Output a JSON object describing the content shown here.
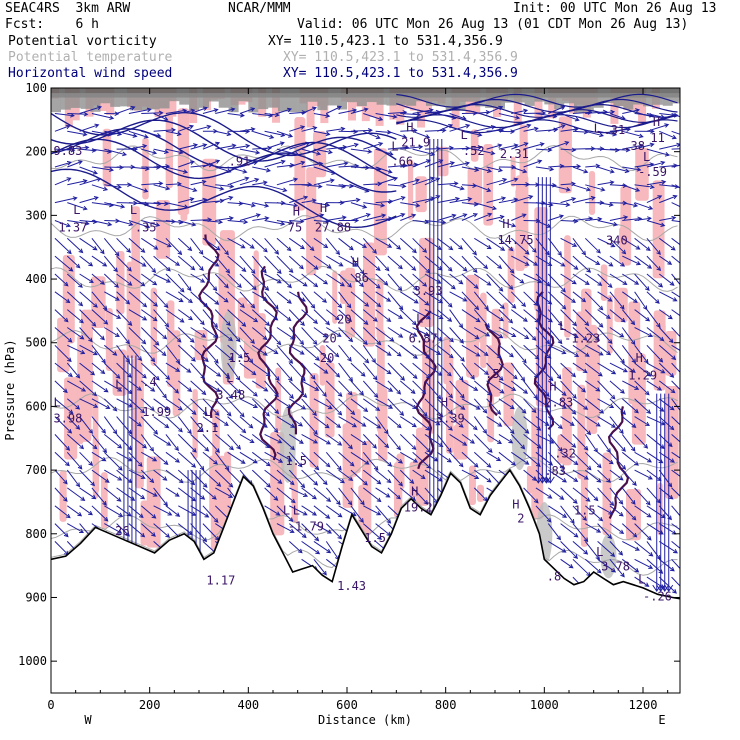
{
  "header": {
    "model": "SEAC4RS  3km ARW",
    "org": "NCAR/MMM",
    "init": "Init: 00 UTC Mon 26 Aug 13",
    "fcst": "Fcst:    6 h",
    "valid": "Valid: 06 UTC Mon 26 Aug 13 (01 CDT Mon 26 Aug 13)",
    "fields": [
      {
        "name": "Potential vorticity",
        "xy": "XY= 110.5,423.1 to 531.4,356.9",
        "color": "#000000"
      },
      {
        "name": "Potential temperature",
        "xy": "XY= 110.5,423.1 to 531.4,356.9",
        "color": "#b0b0b0"
      },
      {
        "name": "Horizontal wind speed",
        "xy": "XY= 110.5,423.1 to 531.4,356.9",
        "color": "#00007a"
      }
    ]
  },
  "chart_data": {
    "type": "cross-section",
    "xlabel": "Distance (km)",
    "ylabel": "Pressure (hPa)",
    "xlim": [
      0,
      1275
    ],
    "ylim": [
      1050,
      100
    ],
    "x_ticks": [
      0,
      200,
      400,
      600,
      800,
      1000,
      1200
    ],
    "y_ticks": [
      100,
      200,
      300,
      400,
      500,
      600,
      700,
      800,
      900,
      1000
    ],
    "x_end_labels": {
      "left": "W",
      "right": "E"
    },
    "terrain": {
      "x_km": [
        0,
        30,
        60,
        90,
        120,
        150,
        180,
        210,
        240,
        270,
        290,
        310,
        330,
        350,
        370,
        390,
        410,
        430,
        450,
        470,
        490,
        510,
        530,
        550,
        570,
        590,
        610,
        630,
        650,
        670,
        690,
        710,
        730,
        750,
        770,
        790,
        810,
        830,
        850,
        870,
        890,
        910,
        930,
        950,
        970,
        990,
        1000,
        1020,
        1040,
        1060,
        1080,
        1100,
        1120,
        1140,
        1160,
        1180,
        1200,
        1230,
        1260,
        1275
      ],
      "p_hpa": [
        840,
        835,
        815,
        790,
        800,
        810,
        820,
        830,
        810,
        800,
        812,
        840,
        830,
        790,
        750,
        710,
        725,
        760,
        800,
        830,
        860,
        855,
        850,
        865,
        875,
        820,
        770,
        795,
        820,
        830,
        800,
        760,
        745,
        760,
        770,
        740,
        705,
        720,
        760,
        770,
        740,
        720,
        700,
        725,
        760,
        800,
        840,
        855,
        870,
        880,
        875,
        860,
        870,
        880,
        875,
        880,
        885,
        895,
        900,
        902
      ]
    },
    "theta_contours_K": [
      300,
      310,
      320,
      330,
      340,
      350,
      360,
      380
    ],
    "labels": [
      {
        "t": "9.83",
        "x": 5,
        "p": 205
      },
      {
        "t": "L",
        "x": 45,
        "p": 298
      },
      {
        "t": "1.37",
        "x": 15,
        "p": 325
      },
      {
        "t": "L",
        "x": 160,
        "p": 298
      },
      {
        "t": ".35",
        "x": 170,
        "p": 325
      },
      {
        "t": ".91",
        "x": 360,
        "p": 222
      },
      {
        "t": "H",
        "x": 490,
        "p": 300
      },
      {
        "t": "75",
        "x": 480,
        "p": 325
      },
      {
        "t": "H",
        "x": 545,
        "p": 295
      },
      {
        "t": "27.88",
        "x": 535,
        "p": 325
      },
      {
        "t": "H",
        "x": 720,
        "p": 168
      },
      {
        "t": "21.9",
        "x": 710,
        "p": 192
      },
      {
        "t": "L",
        "x": 690,
        "p": 198
      },
      {
        "t": ".66",
        "x": 690,
        "p": 222
      },
      {
        "t": "L",
        "x": 830,
        "p": 180
      },
      {
        "t": ".52",
        "x": 835,
        "p": 205
      },
      {
        "t": "2.31",
        "x": 910,
        "p": 210
      },
      {
        "t": "L",
        "x": 1100,
        "p": 170
      },
      {
        "t": ".31",
        "x": 1120,
        "p": 172
      },
      {
        "t": ".38",
        "x": 1160,
        "p": 197
      },
      {
        "t": "H",
        "x": 1220,
        "p": 160
      },
      {
        "t": "11",
        "x": 1215,
        "p": 185
      },
      {
        "t": "L",
        "x": 1200,
        "p": 215
      },
      {
        "t": "-.59",
        "x": 1190,
        "p": 238
      },
      {
        "t": "H",
        "x": 915,
        "p": 320
      },
      {
        "t": "14.75",
        "x": 905,
        "p": 345
      },
      {
        "t": "340",
        "x": 1125,
        "p": 346
      },
      {
        "t": "H",
        "x": 610,
        "p": 380
      },
      {
        "t": "86",
        "x": 615,
        "p": 405
      },
      {
        "t": "3.93",
        "x": 735,
        "p": 425
      },
      {
        "t": "L",
        "x": 740,
        "p": 468
      },
      {
        "t": "6.87",
        "x": 725,
        "p": 500
      },
      {
        "t": "20",
        "x": 580,
        "p": 470
      },
      {
        "t": "20",
        "x": 550,
        "p": 500
      },
      {
        "t": "20",
        "x": 545,
        "p": 530
      },
      {
        "t": "L",
        "x": 1030,
        "p": 480
      },
      {
        "t": "-1.23",
        "x": 1040,
        "p": 500
      },
      {
        "t": "H",
        "x": 1185,
        "p": 530
      },
      {
        "t": "1.29",
        "x": 1170,
        "p": 558
      },
      {
        "t": "1.5",
        "x": 360,
        "p": 530
      },
      {
        "t": "L",
        "x": 355,
        "p": 562
      },
      {
        "t": "3.48",
        "x": 335,
        "p": 588
      },
      {
        "t": ".5",
        "x": 880,
        "p": 555
      },
      {
        "t": "L",
        "x": 130,
        "p": 572
      },
      {
        "t": ".4",
        "x": 185,
        "p": 568
      },
      {
        "t": "L",
        "x": 5,
        "p": 600
      },
      {
        "t": "3.98",
        "x": 5,
        "p": 625
      },
      {
        "t": "1.99",
        "x": 185,
        "p": 615
      },
      {
        "t": "L",
        "x": 310,
        "p": 615
      },
      {
        "t": "2.1",
        "x": 295,
        "p": 640
      },
      {
        "t": "H",
        "x": 790,
        "p": 600
      },
      {
        "t": "3.39",
        "x": 780,
        "p": 625
      },
      {
        "t": "H",
        "x": 1010,
        "p": 575
      },
      {
        "t": "2.83",
        "x": 1000,
        "p": 600
      },
      {
        "t": "1.5",
        "x": 475,
        "p": 692
      },
      {
        "t": ".32",
        "x": 1020,
        "p": 680
      },
      {
        "t": ".83",
        "x": 1000,
        "p": 708
      },
      {
        "t": "H",
        "x": 730,
        "p": 740
      },
      {
        "t": "19.2",
        "x": 715,
        "p": 765
      },
      {
        "t": "H",
        "x": 935,
        "p": 760
      },
      {
        "t": "2",
        "x": 945,
        "p": 782
      },
      {
        "t": "1.5",
        "x": 1060,
        "p": 770
      },
      {
        "t": "L",
        "x": 470,
        "p": 770
      },
      {
        "t": "L",
        "x": 490,
        "p": 770
      },
      {
        "t": "-1.79",
        "x": 480,
        "p": 795
      },
      {
        "t": "1.5",
        "x": 635,
        "p": 813
      },
      {
        "t": "L",
        "x": 1105,
        "p": 835
      },
      {
        "t": "3.78",
        "x": 1115,
        "p": 858
      },
      {
        "t": "L",
        "x": 1190,
        "p": 878
      },
      {
        "t": "-.26",
        "x": 1200,
        "p": 905
      },
      {
        "t": "1.17",
        "x": 315,
        "p": 880
      },
      {
        "t": "1.43",
        "x": 580,
        "p": 888
      },
      {
        "t": ".8",
        "x": 1005,
        "p": 873
      },
      {
        "t": "26",
        "x": 130,
        "p": 802
      }
    ]
  }
}
